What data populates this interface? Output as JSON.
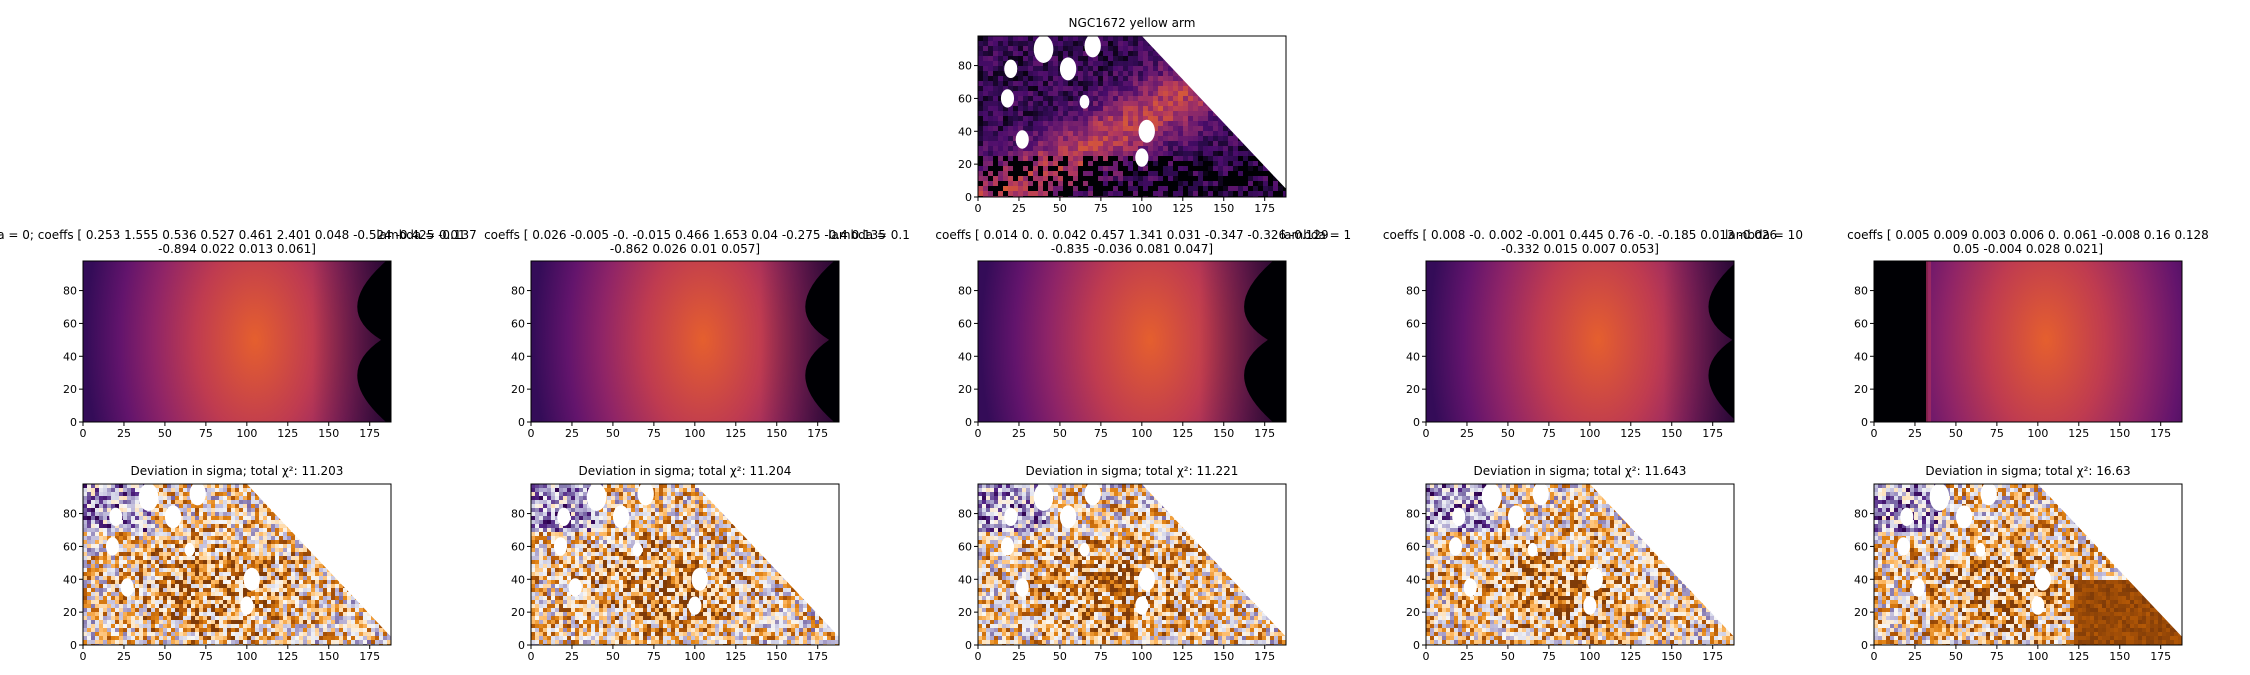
{
  "figure": {
    "colormap_model": [
      "#000004",
      "#1b0c41",
      "#4a0c6b",
      "#781c6d",
      "#a52c60",
      "#cf4446",
      "#ed6925",
      "#fb9b06"
    ],
    "colormap_data": [
      "#000004",
      "#2a0a4a",
      "#4a0c6b",
      "#6b1b6e",
      "#8c2a6a",
      "#b1385e",
      "#cf5040",
      "#e06a2e"
    ],
    "colormap_deviation": [
      "#2d004b",
      "#542788",
      "#8073ac",
      "#b2abd2",
      "#d8daeb",
      "#f7f7f7",
      "#fee0b6",
      "#fdb863",
      "#e08214",
      "#b35806",
      "#7f3b08"
    ]
  },
  "chart_data": [
    {
      "id": "data",
      "type": "heatmap",
      "title": "NGC1672 yellow arm",
      "xlim": [
        0,
        188
      ],
      "ylim": [
        0,
        98
      ],
      "xticks": [
        0,
        25,
        50,
        75,
        100,
        125,
        150,
        175
      ],
      "yticks": [
        0,
        20,
        40,
        60,
        80
      ],
      "masked_region": "white upper-right corner, diagonal lower-right cut, and circular holes",
      "colormap": "magma"
    },
    {
      "id": "model-1",
      "type": "heatmap",
      "title_line1": "a = 0; coeffs [ 0.253  1.555  0.536  0.527  0.461  2.401  0.048 -0.524 -0.425 -0.137",
      "title_overlap": "lambda = 0.01",
      "title_line2": "-0.894  0.022  0.013  0.061]",
      "xlim": [
        0,
        188
      ],
      "ylim": [
        0,
        98
      ],
      "xticks": [
        0,
        25,
        50,
        75,
        100,
        125,
        150,
        175
      ],
      "yticks": [
        0,
        20,
        40,
        60,
        80
      ],
      "peak": [
        105,
        50
      ],
      "edge_x": 185,
      "colormap": "inferno"
    },
    {
      "id": "model-2",
      "type": "heatmap",
      "title_line1": "coeffs [ 0.026 -0.005 -0.     -0.015  0.466  1.653  0.04  -0.275 -0.4   0.135",
      "title_overlap": "lambda = 0.1",
      "title_line2": "-0.862  0.026  0.01   0.057]",
      "xlim": [
        0,
        188
      ],
      "ylim": [
        0,
        98
      ],
      "xticks": [
        0,
        25,
        50,
        75,
        100,
        125,
        150,
        175
      ],
      "yticks": [
        0,
        20,
        40,
        60,
        80
      ],
      "peak": [
        105,
        50
      ],
      "edge_x": 185,
      "colormap": "inferno"
    },
    {
      "id": "model-3",
      "type": "heatmap",
      "title_line1": "coeffs [ 0.014  0.     0.     0.042  0.457  1.341  0.031 -0.347 -0.326 -0.129",
      "title_overlap": "lambda = 1",
      "title_line2": "-0.835 -0.036  0.081  0.047]",
      "xlim": [
        0,
        188
      ],
      "ylim": [
        0,
        98
      ],
      "xticks": [
        0,
        25,
        50,
        75,
        100,
        125,
        150,
        175
      ],
      "yticks": [
        0,
        20,
        40,
        60,
        80
      ],
      "peak": [
        105,
        50
      ],
      "edge_x": 180,
      "colormap": "inferno"
    },
    {
      "id": "model-4",
      "type": "heatmap",
      "title_line1": "coeffs [ 0.008 -0.     0.002 -0.001  0.445  0.76  -0.     -0.185  0.013 -0.026",
      "title_overlap": "lambda = 10",
      "title_line2": "-0.332  0.015  0.007  0.053]",
      "xlim": [
        0,
        188
      ],
      "ylim": [
        0,
        98
      ],
      "xticks": [
        0,
        25,
        50,
        75,
        100,
        125,
        150,
        175
      ],
      "yticks": [
        0,
        20,
        40,
        60,
        80
      ],
      "peak": [
        105,
        50
      ],
      "edge_x": 190,
      "colormap": "inferno"
    },
    {
      "id": "model-5",
      "type": "heatmap",
      "title_line1": "coeffs [ 0.005  0.009  0.003  0.006  0.     0.061 -0.008  0.16   0.128",
      "title_line2": "0.05  -0.004  0.028  0.021]",
      "xlim": [
        0,
        188
      ],
      "ylim": [
        0,
        98
      ],
      "xticks": [
        0,
        25,
        50,
        75,
        100,
        125,
        150,
        175
      ],
      "yticks": [
        0,
        20,
        40,
        60,
        80
      ],
      "left_cut_x": 33,
      "colormap": "inferno"
    },
    {
      "id": "dev-1",
      "type": "heatmap",
      "title": "Deviation in sigma; total χ²: 11.203",
      "xlim": [
        0,
        188
      ],
      "ylim": [
        0,
        98
      ],
      "xticks": [
        0,
        25,
        50,
        75,
        100,
        125,
        150,
        175
      ],
      "yticks": [
        0,
        20,
        40,
        60,
        80
      ],
      "colormap": "PuOr"
    },
    {
      "id": "dev-2",
      "type": "heatmap",
      "title": "Deviation in sigma; total χ²: 11.204",
      "xlim": [
        0,
        188
      ],
      "ylim": [
        0,
        98
      ],
      "xticks": [
        0,
        25,
        50,
        75,
        100,
        125,
        150,
        175
      ],
      "yticks": [
        0,
        20,
        40,
        60,
        80
      ],
      "colormap": "PuOr"
    },
    {
      "id": "dev-3",
      "type": "heatmap",
      "title": "Deviation in sigma; total χ²: 11.221",
      "xlim": [
        0,
        188
      ],
      "ylim": [
        0,
        98
      ],
      "xticks": [
        0,
        25,
        50,
        75,
        100,
        125,
        150,
        175
      ],
      "yticks": [
        0,
        20,
        40,
        60,
        80
      ],
      "colormap": "PuOr"
    },
    {
      "id": "dev-4",
      "type": "heatmap",
      "title": "Deviation in sigma; total χ²: 11.643",
      "xlim": [
        0,
        188
      ],
      "ylim": [
        0,
        98
      ],
      "xticks": [
        0,
        25,
        50,
        75,
        100,
        125,
        150,
        175
      ],
      "yticks": [
        0,
        20,
        40,
        60,
        80
      ],
      "colormap": "PuOr"
    },
    {
      "id": "dev-5",
      "type": "heatmap",
      "title": "Deviation in sigma; total χ²: 16.63",
      "xlim": [
        0,
        188
      ],
      "ylim": [
        0,
        98
      ],
      "xticks": [
        0,
        25,
        50,
        75,
        100,
        125,
        150,
        175
      ],
      "yticks": [
        0,
        20,
        40,
        60,
        80
      ],
      "colormap": "PuOr"
    }
  ]
}
